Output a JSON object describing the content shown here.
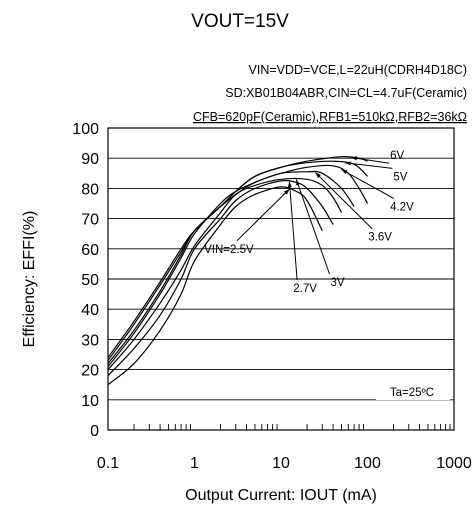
{
  "chart_data": {
    "type": "line",
    "title": "VOUT=15V",
    "conditions": [
      "VIN=VDD=VCE,L=22uH(CDRH4D18C)",
      "SD:XB01B04ABR,CIN=CL=4.7uF(Ceramic)",
      "CFB=620pF(Ceramic),RFB1=510kΩ,RFB2=36kΩ"
    ],
    "xlabel": "Output Current: IOUT (mA)",
    "ylabel": "Efficiency: EFFI(%)",
    "x_scale": "log",
    "xlim": [
      0.1,
      1000
    ],
    "ylim": [
      0,
      100
    ],
    "x_ticks": [
      "0.1",
      "1",
      "10",
      "100",
      "1000"
    ],
    "y_ticks": [
      "0",
      "10",
      "20",
      "30",
      "40",
      "50",
      "60",
      "70",
      "80",
      "90",
      "100"
    ],
    "grid": true,
    "ambient_label": "Ta=25ºC",
    "series": [
      {
        "name": "VIN=2.5V",
        "x": [
          0.1,
          0.2,
          0.4,
          0.7,
          1,
          2,
          3,
          5,
          10,
          15,
          20,
          30
        ],
        "y": [
          15,
          22,
          33,
          45,
          56,
          68,
          74,
          78,
          80.5,
          79,
          76,
          66
        ]
      },
      {
        "name": "2.7V",
        "x": [
          0.1,
          0.2,
          0.4,
          0.7,
          1,
          2,
          3,
          5,
          10,
          15,
          20,
          30,
          40
        ],
        "y": [
          18,
          27,
          38,
          50,
          60,
          70,
          76,
          80,
          82.5,
          82,
          80,
          74,
          68
        ]
      },
      {
        "name": "3V",
        "x": [
          0.1,
          0.2,
          0.4,
          0.7,
          1,
          2,
          3,
          5,
          10,
          20,
          30,
          40,
          50
        ],
        "y": [
          20,
          30,
          42,
          53,
          61,
          72,
          78,
          81,
          83,
          83,
          81,
          77,
          72
        ]
      },
      {
        "name": "3.6V",
        "x": [
          0.1,
          0.2,
          0.4,
          0.7,
          1,
          2,
          3,
          5,
          10,
          20,
          30,
          50,
          70
        ],
        "y": [
          21,
          32,
          45,
          57,
          65,
          75,
          79,
          82,
          85,
          85.5,
          85,
          80,
          74
        ]
      },
      {
        "name": "4.2V",
        "x": [
          0.1,
          0.2,
          0.4,
          0.7,
          1,
          2,
          3,
          5,
          10,
          20,
          40,
          60,
          80,
          100
        ],
        "y": [
          22,
          33,
          46,
          58,
          66,
          74,
          78,
          82,
          85,
          87,
          87.5,
          85,
          80,
          75
        ]
      },
      {
        "name": "5V",
        "x": [
          0.1,
          0.2,
          0.4,
          0.7,
          1,
          2,
          3,
          5,
          10,
          20,
          40,
          70,
          100
        ],
        "y": [
          23,
          35,
          48,
          59,
          66,
          74,
          79,
          84,
          87,
          88.5,
          89,
          88,
          84
        ]
      },
      {
        "name": "6V",
        "x": [
          0.1,
          0.2,
          0.4,
          0.7,
          1,
          2,
          3,
          5,
          10,
          20,
          50,
          80,
          100
        ],
        "y": [
          24,
          36,
          49,
          60,
          66,
          74,
          79,
          84,
          87,
          89,
          90.5,
          90,
          89
        ]
      }
    ],
    "annotations": [
      {
        "text": "6V",
        "x": 220,
        "y": 91
      },
      {
        "text": "5V",
        "x": 240,
        "y": 84
      },
      {
        "text": "4.2V",
        "x": 250,
        "y": 74
      },
      {
        "text": "3.6V",
        "x": 140,
        "y": 64
      },
      {
        "text": "VIN=2.5V",
        "x": 2.5,
        "y": 60
      },
      {
        "text": "2.7V",
        "x": 19,
        "y": 47
      },
      {
        "text": "3V",
        "x": 45,
        "y": 49
      }
    ]
  }
}
